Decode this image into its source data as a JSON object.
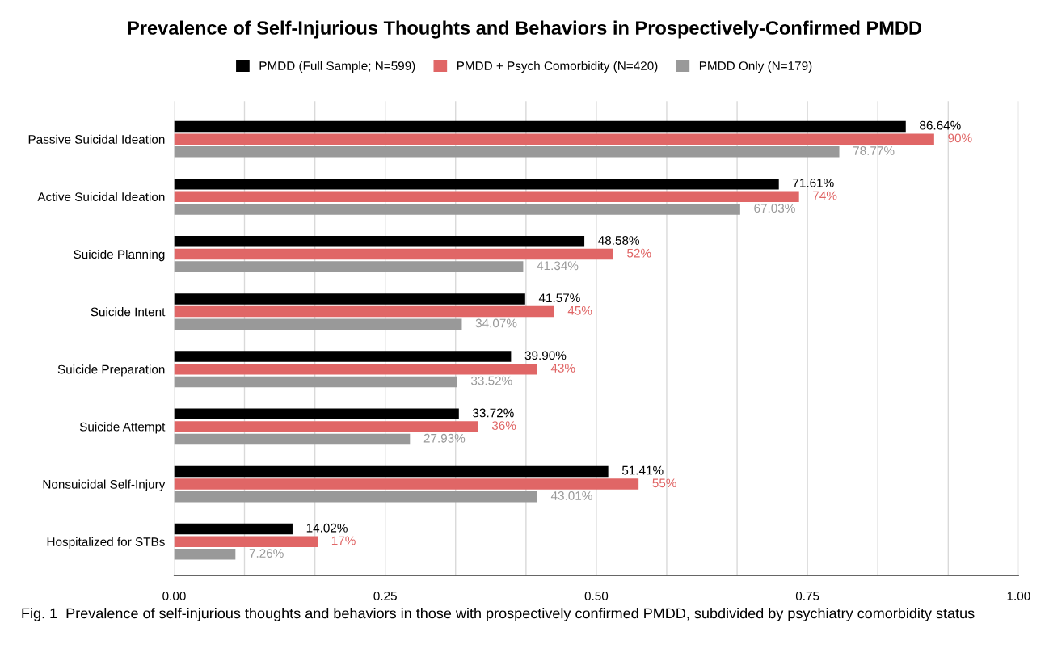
{
  "chart_data": {
    "type": "bar",
    "orientation": "horizontal",
    "title": "Prevalence of Self-Injurious Thoughts and Behaviors in Prospectively-Confirmed PMDD",
    "categories": [
      "Passive Suicidal Ideation",
      "Active Suicidal Ideation",
      "Suicide Planning",
      "Suicide Intent",
      "Suicide Preparation",
      "Suicide Attempt",
      "Nonsuicidal Self-Injury",
      "Hospitalized for STBs"
    ],
    "series": [
      {
        "name": "PMDD (Full Sample; N=599)",
        "color": "#000000",
        "values": [
          0.8664,
          0.7161,
          0.4858,
          0.4157,
          0.399,
          0.3372,
          0.5141,
          0.1402
        ],
        "value_labels": [
          "86.64%",
          "71.61%",
          "48.58%",
          "41.57%",
          "39.90%",
          "33.72%",
          "51.41%",
          "14.02%"
        ]
      },
      {
        "name": "PMDD + Psych Comorbidity (N=420)",
        "color": "#e06666",
        "values": [
          0.9,
          0.74,
          0.52,
          0.45,
          0.43,
          0.36,
          0.55,
          0.17
        ],
        "value_labels": [
          "90%",
          "74%",
          "52%",
          "45%",
          "43%",
          "36%",
          "55%",
          "17%"
        ]
      },
      {
        "name": "PMDD Only (N=179)",
        "color": "#999999",
        "values": [
          0.7877,
          0.6703,
          0.4134,
          0.3407,
          0.3352,
          0.2793,
          0.4301,
          0.0726
        ],
        "value_labels": [
          "78.77%",
          "67.03%",
          "41.34%",
          "34.07%",
          "33.52%",
          "27.93%",
          "43.01%",
          "7.26%"
        ]
      }
    ],
    "xlim": [
      0,
      1
    ],
    "xticks": [
      {
        "value": 0,
        "label": "0.00"
      },
      {
        "value": 0.0833,
        "label": null
      },
      {
        "value": 0.1667,
        "label": null
      },
      {
        "value": 0.25,
        "label": "0.25"
      },
      {
        "value": 0.3333,
        "label": null
      },
      {
        "value": 0.4167,
        "label": null
      },
      {
        "value": 0.5,
        "label": "0.50"
      },
      {
        "value": 0.5833,
        "label": null
      },
      {
        "value": 0.6667,
        "label": null
      },
      {
        "value": 0.75,
        "label": "0.75"
      },
      {
        "value": 0.8333,
        "label": null
      },
      {
        "value": 0.9167,
        "label": null
      },
      {
        "value": 1,
        "label": "1.00"
      }
    ],
    "grid": "x",
    "legend": "top",
    "annotations": [
      "Fig. 1  Prevalence of self-injurious thoughts and behaviors in those with prospectively confirmed PMDD, subdivided by psychiatry comorbidity status"
    ]
  }
}
